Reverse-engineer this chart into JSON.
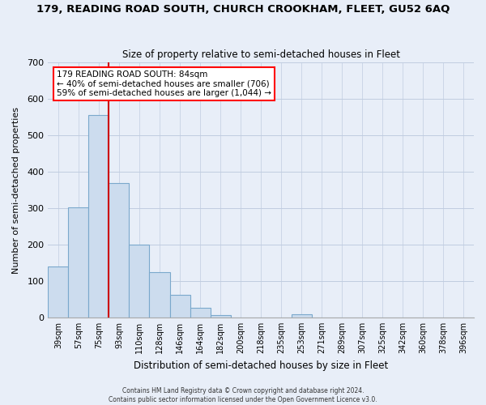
{
  "title": "179, READING ROAD SOUTH, CHURCH CROOKHAM, FLEET, GU52 6AQ",
  "subtitle": "Size of property relative to semi-detached houses in Fleet",
  "xlabel": "Distribution of semi-detached houses by size in Fleet",
  "ylabel": "Number of semi-\ndetached properties",
  "bar_labels": [
    "39sqm",
    "57sqm",
    "75sqm",
    "93sqm",
    "110sqm",
    "128sqm",
    "146sqm",
    "164sqm",
    "182sqm",
    "200sqm",
    "218sqm",
    "235sqm",
    "253sqm",
    "271sqm",
    "289sqm",
    "307sqm",
    "325sqm",
    "342sqm",
    "360sqm",
    "378sqm",
    "396sqm"
  ],
  "bar_values": [
    140,
    303,
    557,
    370,
    200,
    124,
    62,
    26,
    7,
    0,
    0,
    0,
    8,
    0,
    0,
    0,
    0,
    0,
    0,
    0,
    0
  ],
  "bar_color": "#ccdcee",
  "bar_edge_color": "#7aa8cc",
  "vline_color": "#cc0000",
  "ylim": [
    0,
    700
  ],
  "yticks": [
    0,
    100,
    200,
    300,
    400,
    500,
    600,
    700
  ],
  "annotation_title": "179 READING ROAD SOUTH: 84sqm",
  "annotation_line1": "← 40% of semi-detached houses are smaller (706)",
  "annotation_line2": "59% of semi-detached houses are larger (1,044) →",
  "footer1": "Contains HM Land Registry data © Crown copyright and database right 2024.",
  "footer2": "Contains public sector information licensed under the Open Government Licence v3.0.",
  "background_color": "#e8eef8",
  "plot_background": "#e8eef8",
  "grid_color": "#c0cce0",
  "figsize": [
    6.0,
    5.0
  ],
  "dpi": 100
}
